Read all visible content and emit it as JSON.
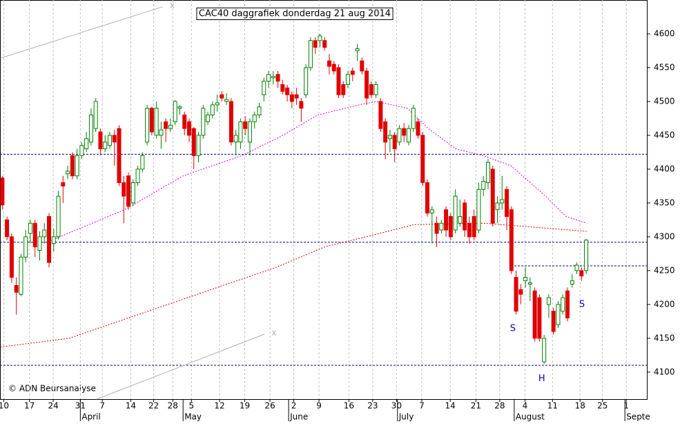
{
  "chart_data": {
    "type": "candlestick",
    "title": "CAC40 daggrafiek donderdag 21 aug 2014",
    "credit": "© ADN Beursanalyse",
    "up_color": "#008000",
    "down_color": "#e00000",
    "open": [
      4387,
      4325,
      4300,
      4228,
      4215,
      4270,
      4305,
      4320,
      4280,
      4300,
      4330,
      4290,
      4300,
      4380,
      4393,
      4420,
      4390,
      4420,
      4430,
      4440,
      4460,
      4455,
      4430,
      4435,
      4450,
      4460,
      4380,
      4390,
      4350,
      4380,
      4400,
      4440,
      4490,
      4450,
      4450,
      4470,
      4460,
      4470,
      4490,
      4480,
      4470,
      4460,
      4420,
      4450,
      4470,
      4480,
      4495,
      4510,
      4500,
      4500,
      4440,
      4440,
      4470,
      4440,
      4470,
      4480,
      4510,
      4530,
      4535,
      4540,
      4525,
      4520,
      4510,
      4510,
      4500,
      4510,
      4550,
      4590,
      4590,
      4590,
      4560,
      4555,
      4550,
      4525,
      4525,
      4545,
      4575,
      4560,
      4545,
      4525,
      4510,
      4500,
      4470,
      4445,
      4450,
      4440,
      4460,
      4440,
      4460,
      4470,
      4450,
      4380,
      4335,
      4320,
      4310,
      4340,
      4330,
      4310,
      4320,
      4350,
      4320,
      4330,
      4310,
      4370,
      4380,
      4400,
      4340,
      4350,
      4370,
      4340,
      4240,
      4222,
      4235,
      4230,
      4220,
      4210,
      4115,
      4200,
      4190,
      4170,
      4190,
      4220,
      4230,
      4250,
      4250,
      4250
    ],
    "high": [
      4390,
      4330,
      4305,
      4240,
      4275,
      4310,
      4325,
      4325,
      4308,
      4320,
      4335,
      4312,
      4368,
      4390,
      4405,
      4425,
      4430,
      4440,
      4455,
      4490,
      4505,
      4460,
      4450,
      4455,
      4458,
      4465,
      4390,
      4395,
      4385,
      4405,
      4425,
      4495,
      4492,
      4500,
      4470,
      4475,
      4475,
      4502,
      4495,
      4485,
      4475,
      4462,
      4455,
      4495,
      4485,
      4500,
      4510,
      4515,
      4512,
      4505,
      4458,
      4475,
      4478,
      4475,
      4485,
      4498,
      4535,
      4545,
      4545,
      4545,
      4532,
      4525,
      4515,
      4520,
      4505,
      4555,
      4595,
      4595,
      4600,
      4595,
      4570,
      4560,
      4555,
      4530,
      4545,
      4550,
      4585,
      4565,
      4550,
      4530,
      4530,
      4505,
      4475,
      4458,
      4455,
      4465,
      4468,
      4465,
      4495,
      4475,
      4455,
      4385,
      4345,
      4330,
      4325,
      4345,
      4335,
      4370,
      4355,
      4355,
      4330,
      4340,
      4380,
      4390,
      4415,
      4405,
      4360,
      4390,
      4375,
      4345,
      4250,
      4230,
      4255,
      4240,
      4225,
      4215,
      4155,
      4215,
      4195,
      4205,
      4215,
      4225,
      4245,
      4262,
      4255,
      4297
    ],
    "low": [
      4340,
      4295,
      4232,
      4185,
      4212,
      4262,
      4290,
      4270,
      4265,
      4290,
      4255,
      4278,
      4296,
      4350,
      4385,
      4385,
      4385,
      4415,
      4425,
      4435,
      4455,
      4420,
      4425,
      4430,
      4405,
      4375,
      4320,
      4340,
      4345,
      4375,
      4395,
      4435,
      4450,
      4445,
      4430,
      4440,
      4455,
      4465,
      4480,
      4450,
      4440,
      4400,
      4410,
      4445,
      4465,
      4475,
      4485,
      4500,
      4495,
      4435,
      4420,
      4430,
      4450,
      4420,
      4460,
      4475,
      4500,
      4520,
      4525,
      4520,
      4510,
      4500,
      4490,
      4495,
      4470,
      4505,
      4545,
      4570,
      4580,
      4575,
      4540,
      4540,
      4505,
      4505,
      4520,
      4530,
      4560,
      4540,
      4495,
      4505,
      4505,
      4455,
      4415,
      4425,
      4410,
      4435,
      4440,
      4435,
      4455,
      4445,
      4375,
      4330,
      4290,
      4285,
      4305,
      4300,
      4295,
      4305,
      4315,
      4300,
      4290,
      4295,
      4305,
      4360,
      4370,
      4315,
      4320,
      4340,
      4310,
      4245,
      4185,
      4200,
      4225,
      4205,
      4145,
      4145,
      4112,
      4180,
      4155,
      4165,
      4185,
      4175,
      4225,
      4245,
      4235,
      4245
    ],
    "close": [
      4347,
      4300,
      4240,
      4218,
      4270,
      4300,
      4320,
      4285,
      4300,
      4310,
      4262,
      4300,
      4360,
      4375,
      4397,
      4390,
      4420,
      4435,
      4445,
      4480,
      4500,
      4430,
      4440,
      4450,
      4440,
      4380,
      4360,
      4345,
      4380,
      4400,
      4420,
      4490,
      4455,
      4490,
      4458,
      4460,
      4465,
      4500,
      4492,
      4460,
      4450,
      4420,
      4450,
      4490,
      4480,
      4495,
      4498,
      4505,
      4503,
      4440,
      4450,
      4470,
      4460,
      4470,
      4480,
      4492,
      4530,
      4540,
      4537,
      4530,
      4515,
      4510,
      4500,
      4505,
      4490,
      4550,
      4590,
      4580,
      4597,
      4580,
      4552,
      4545,
      4510,
      4510,
      4540,
      4540,
      4578,
      4545,
      4505,
      4510,
      4525,
      4460,
      4440,
      4450,
      4430,
      4460,
      4450,
      4460,
      4490,
      4450,
      4380,
      4335,
      4340,
      4305,
      4320,
      4310,
      4300,
      4360,
      4330,
      4310,
      4300,
      4300,
      4370,
      4382,
      4410,
      4320,
      4350,
      4355,
      4330,
      4250,
      4190,
      4215,
      4240,
      4232,
      4150,
      4150,
      4150,
      4210,
      4160,
      4200,
      4210,
      4180,
      4235,
      4258,
      4242,
      4295
    ],
    "xlim": [
      -0.5,
      138
    ],
    "ylim": [
      4060,
      4650
    ],
    "yticks": [
      4100,
      4150,
      4200,
      4250,
      4300,
      4350,
      4400,
      4450,
      4500,
      4550,
      4600
    ],
    "xticks": [
      {
        "value": 0.3,
        "label": "10"
      },
      {
        "value": 5.8,
        "label": "17"
      },
      {
        "value": 10.9,
        "label": "24"
      },
      {
        "value": 16.7,
        "label": "31"
      },
      {
        "value": 21.4,
        "label": "7"
      },
      {
        "value": 27.5,
        "label": "14"
      },
      {
        "value": 32.4,
        "label": "22"
      },
      {
        "value": 36.5,
        "label": "28"
      },
      {
        "value": 40.5,
        "label": "5"
      },
      {
        "value": 46.5,
        "label": "12"
      },
      {
        "value": 51.9,
        "label": "19"
      },
      {
        "value": 57.3,
        "label": "26"
      },
      {
        "value": 62.4,
        "label": "2"
      },
      {
        "value": 67.8,
        "label": "9"
      },
      {
        "value": 74.2,
        "label": "16"
      },
      {
        "value": 79.3,
        "label": "23"
      },
      {
        "value": 84.4,
        "label": "30"
      },
      {
        "value": 89.8,
        "label": "7"
      },
      {
        "value": 95.9,
        "label": "14"
      },
      {
        "value": 101.4,
        "label": "21"
      },
      {
        "value": 106.5,
        "label": "28"
      },
      {
        "value": 111.9,
        "label": "4"
      },
      {
        "value": 117.8,
        "label": "11"
      },
      {
        "value": 123.7,
        "label": "18"
      },
      {
        "value": 128.5,
        "label": "25"
      },
      {
        "value": 133.6,
        "label": "1"
      }
    ],
    "month_labels": [
      {
        "label": "April",
        "x": 16.7
      },
      {
        "label": "May",
        "x": 38.7
      },
      {
        "label": "June",
        "x": 61.3
      },
      {
        "label": "July",
        "x": 84.6
      },
      {
        "label": "August",
        "x": 109.6
      },
      {
        "label": "Septe",
        "x": 133.3
      }
    ],
    "grid": true,
    "overlays": [
      {
        "color": "#e000e0",
        "x": [
          9.9,
          26.2,
          38.7,
          51.3,
          60.1,
          67.5,
          76.4,
          80.1,
          86.7,
          91.2,
          97.1,
          103,
          108.9,
          116.3,
          120.7,
          125.1
        ],
        "values": [
          4293,
          4340,
          4390,
          4420,
          4450,
          4480,
          4495,
          4500,
          4490,
          4460,
          4430,
          4420,
          4405,
          4360,
          4330,
          4320
        ]
      },
      {
        "color": "#e00000",
        "x": [
          -0.4,
          14.3,
          29.1,
          43.9,
          58.7,
          69,
          77.9,
          88.2,
          103,
          117.8,
          125.1
        ],
        "values": [
          4137,
          4150,
          4185,
          4220,
          4255,
          4285,
          4300,
          4318,
          4320,
          4312,
          4308
        ]
      }
    ],
    "hlines": [
      {
        "value": 4422,
        "from": -0.5
      },
      {
        "value": 4292,
        "from": -0.5
      },
      {
        "value": 4257,
        "from": 108.9
      },
      {
        "value": 4110,
        "from": -0.5
      }
    ],
    "hline_color": "#000080",
    "trendlines": [
      {
        "x": [
          -0.4,
          34.3
        ],
        "values": [
          4564,
          4640
        ],
        "marker": "x"
      },
      {
        "x": [
          20.2,
          56.1
        ],
        "values": [
          4060,
          4156
        ],
        "marker": "x"
      }
    ],
    "annotations": [
      {
        "text": "S",
        "x": 109.3,
        "value": 4164
      },
      {
        "text": "H",
        "x": 115.5,
        "value": 4090
      },
      {
        "text": "S",
        "x": 124.1,
        "value": 4200
      }
    ]
  }
}
